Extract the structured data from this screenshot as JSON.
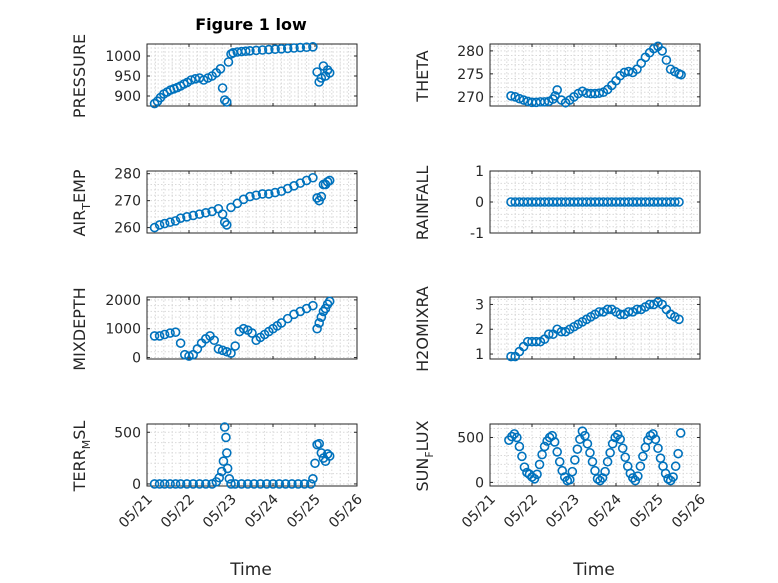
{
  "figure": {
    "title": "Figure 1 low",
    "xlabel": "Time"
  },
  "chart_data": [
    {
      "id": "pressure",
      "type": "scatter",
      "ylabel": "PRESSURE",
      "ylim": [
        875,
        1030
      ],
      "yticks": [
        900,
        950,
        1000
      ],
      "ytick_labels": [
        "900",
        "950",
        "1000"
      ],
      "xlim": [
        0,
        5
      ],
      "xticks": [
        0,
        1,
        2,
        3,
        4,
        5
      ],
      "xtick_labels": [
        "05/21",
        "05/22",
        "05/23",
        "05/24",
        "05/25",
        "05/26"
      ],
      "xtick_labels_visible": false,
      "grid": true,
      "x": [
        0.18,
        0.25,
        0.32,
        0.4,
        0.48,
        0.56,
        0.64,
        0.72,
        0.8,
        0.88,
        0.96,
        1.05,
        1.15,
        1.25,
        1.35,
        1.45,
        1.55,
        1.65,
        1.75,
        1.8,
        1.85,
        1.9,
        1.94,
        2.0,
        2.05,
        2.15,
        2.25,
        2.35,
        2.45,
        2.6,
        2.75,
        2.9,
        3.05,
        3.2,
        3.35,
        3.5,
        3.65,
        3.8,
        3.95,
        4.05,
        4.1,
        4.15,
        4.2,
        4.25,
        4.3,
        4.35
      ],
      "y": [
        881,
        887,
        896,
        905,
        910,
        915,
        918,
        921,
        925,
        930,
        934,
        940,
        943,
        945,
        940,
        945,
        950,
        958,
        968,
        920,
        890,
        885,
        985,
        1005,
        1008,
        1010,
        1011,
        1012,
        1013,
        1014,
        1015,
        1016,
        1017,
        1018,
        1019,
        1020,
        1021,
        1022,
        1023,
        960,
        935,
        945,
        975,
        950,
        965,
        958
      ]
    },
    {
      "id": "theta",
      "type": "scatter",
      "ylabel": "THETA",
      "ylim": [
        268,
        281.5
      ],
      "yticks": [
        270,
        275,
        280
      ],
      "ytick_labels": [
        "270",
        "275",
        "280"
      ],
      "xlim": [
        0,
        5
      ],
      "xticks": [
        0,
        1,
        2,
        3,
        4,
        5
      ],
      "xtick_labels": [
        "05/21",
        "05/22",
        "05/23",
        "05/24",
        "05/25",
        "05/26"
      ],
      "xtick_labels_visible": false,
      "grid": true,
      "x": [
        0.5,
        0.6,
        0.7,
        0.8,
        0.9,
        1.0,
        1.1,
        1.2,
        1.3,
        1.4,
        1.5,
        1.55,
        1.6,
        1.7,
        1.8,
        1.9,
        2.0,
        2.1,
        2.2,
        2.3,
        2.4,
        2.5,
        2.6,
        2.7,
        2.8,
        2.9,
        3.0,
        3.1,
        3.2,
        3.3,
        3.4,
        3.5,
        3.6,
        3.7,
        3.8,
        3.9,
        4.0,
        4.1,
        4.2,
        4.3,
        4.4,
        4.5,
        4.55
      ],
      "y": [
        270.2,
        270.0,
        269.6,
        269.3,
        269.0,
        268.8,
        268.8,
        268.9,
        268.9,
        269.0,
        269.5,
        270.2,
        271.5,
        269.3,
        268.7,
        269.3,
        270.0,
        270.7,
        271.2,
        270.8,
        270.7,
        270.7,
        270.8,
        271.0,
        271.6,
        272.5,
        273.5,
        274.6,
        275.3,
        275.5,
        275.3,
        276.0,
        277.3,
        278.6,
        279.6,
        280.5,
        281.0,
        280.0,
        278.0,
        276.0,
        275.5,
        275.0,
        274.8
      ]
    },
    {
      "id": "air_temp",
      "type": "scatter",
      "ylabel": "AIR_TEMP",
      "ylim": [
        258,
        281
      ],
      "yticks": [
        260,
        270,
        280
      ],
      "ytick_labels": [
        "260",
        "270",
        "280"
      ],
      "xlim": [
        0,
        5
      ],
      "xticks": [
        0,
        1,
        2,
        3,
        4,
        5
      ],
      "xtick_labels": [
        "05/21",
        "05/22",
        "05/23",
        "05/24",
        "05/25",
        "05/26"
      ],
      "xtick_labels_visible": false,
      "grid": true,
      "x": [
        0.18,
        0.3,
        0.42,
        0.55,
        0.68,
        0.8,
        0.95,
        1.1,
        1.25,
        1.4,
        1.55,
        1.7,
        1.8,
        1.85,
        1.9,
        2.0,
        2.15,
        2.3,
        2.45,
        2.6,
        2.75,
        2.9,
        3.05,
        3.2,
        3.35,
        3.5,
        3.65,
        3.8,
        3.95,
        4.05,
        4.1,
        4.15,
        4.2,
        4.25,
        4.3,
        4.35
      ],
      "y": [
        260,
        261,
        261.5,
        262,
        262.5,
        263.5,
        264,
        264.5,
        265,
        265.5,
        266,
        267,
        265,
        262,
        261,
        267.5,
        269,
        270.5,
        271.5,
        272,
        272.5,
        272.5,
        273,
        273.5,
        274.5,
        275.5,
        276.5,
        277.5,
        278.5,
        271,
        270,
        271.5,
        276,
        276,
        277,
        277.5
      ]
    },
    {
      "id": "rainfall",
      "type": "scatter",
      "ylabel": "RAINFALL",
      "ylim": [
        -1,
        1
      ],
      "yticks": [
        -1,
        0,
        1
      ],
      "ytick_labels": [
        "-1",
        "0",
        "1"
      ],
      "xlim": [
        0,
        5
      ],
      "xticks": [
        0,
        1,
        2,
        3,
        4,
        5
      ],
      "xtick_labels": [
        "05/21",
        "05/22",
        "05/23",
        "05/24",
        "05/25",
        "05/26"
      ],
      "xtick_labels_visible": false,
      "grid": true,
      "x": [
        0.5,
        0.6,
        0.7,
        0.8,
        0.9,
        1.0,
        1.1,
        1.2,
        1.3,
        1.4,
        1.5,
        1.6,
        1.7,
        1.8,
        1.9,
        2.0,
        2.1,
        2.2,
        2.3,
        2.4,
        2.5,
        2.6,
        2.7,
        2.8,
        2.9,
        3.0,
        3.1,
        3.2,
        3.3,
        3.4,
        3.5,
        3.6,
        3.7,
        3.8,
        3.9,
        4.0,
        4.1,
        4.2,
        4.3,
        4.4,
        4.5
      ],
      "y": [
        0,
        0,
        0,
        0,
        0,
        0,
        0,
        0,
        0,
        0,
        0,
        0,
        0,
        0,
        0,
        0,
        0,
        0,
        0,
        0,
        0,
        0,
        0,
        0,
        0,
        0,
        0,
        0,
        0,
        0,
        0,
        0,
        0,
        0,
        0,
        0,
        0,
        0,
        0,
        0,
        0
      ]
    },
    {
      "id": "mixdepth",
      "type": "scatter",
      "ylabel": "MIXDEPTH",
      "ylim": [
        -50,
        2100
      ],
      "yticks": [
        0,
        1000,
        2000
      ],
      "ytick_labels": [
        "0",
        "1000",
        "2000"
      ],
      "xlim": [
        0,
        5
      ],
      "xticks": [
        0,
        1,
        2,
        3,
        4,
        5
      ],
      "xtick_labels": [
        "05/21",
        "05/22",
        "05/23",
        "05/24",
        "05/25",
        "05/26"
      ],
      "xtick_labels_visible": false,
      "grid": true,
      "x": [
        0.18,
        0.3,
        0.42,
        0.55,
        0.68,
        0.8,
        0.9,
        1.0,
        1.1,
        1.2,
        1.3,
        1.4,
        1.5,
        1.6,
        1.7,
        1.8,
        1.9,
        2.0,
        2.1,
        2.2,
        2.3,
        2.4,
        2.5,
        2.6,
        2.7,
        2.8,
        2.9,
        3.0,
        3.1,
        3.2,
        3.35,
        3.5,
        3.65,
        3.8,
        3.95,
        4.05,
        4.1,
        4.15,
        4.2,
        4.25,
        4.3,
        4.35
      ],
      "y": [
        750,
        750,
        800,
        850,
        880,
        500,
        100,
        50,
        100,
        300,
        500,
        650,
        750,
        600,
        300,
        250,
        200,
        150,
        400,
        900,
        1000,
        950,
        850,
        600,
        700,
        800,
        900,
        1000,
        1100,
        1200,
        1350,
        1500,
        1600,
        1700,
        1800,
        1000,
        1200,
        1400,
        1600,
        1700,
        1850,
        1950
      ]
    },
    {
      "id": "h2omixra",
      "type": "scatter",
      "ylabel": "H2OMIXRA",
      "ylim": [
        0.8,
        3.3
      ],
      "yticks": [
        1,
        2,
        3
      ],
      "ytick_labels": [
        "1",
        "2",
        "3"
      ],
      "xlim": [
        0,
        5
      ],
      "xticks": [
        0,
        1,
        2,
        3,
        4,
        5
      ],
      "xtick_labels": [
        "05/21",
        "05/22",
        "05/23",
        "05/24",
        "05/25",
        "05/26"
      ],
      "xtick_labels_visible": false,
      "grid": true,
      "x": [
        0.5,
        0.6,
        0.7,
        0.8,
        0.9,
        1.0,
        1.1,
        1.2,
        1.3,
        1.4,
        1.5,
        1.6,
        1.7,
        1.8,
        1.9,
        2.0,
        2.1,
        2.2,
        2.3,
        2.4,
        2.5,
        2.6,
        2.7,
        2.8,
        2.9,
        3.0,
        3.1,
        3.2,
        3.3,
        3.4,
        3.5,
        3.6,
        3.7,
        3.8,
        3.9,
        4.0,
        4.1,
        4.2,
        4.3,
        4.4,
        4.5
      ],
      "y": [
        0.9,
        0.9,
        1.1,
        1.3,
        1.5,
        1.5,
        1.5,
        1.5,
        1.6,
        1.8,
        1.8,
        2.0,
        1.9,
        1.9,
        2.0,
        2.1,
        2.2,
        2.3,
        2.4,
        2.5,
        2.6,
        2.7,
        2.7,
        2.8,
        2.8,
        2.7,
        2.6,
        2.6,
        2.7,
        2.7,
        2.8,
        2.8,
        2.9,
        3.0,
        3.0,
        3.1,
        3.0,
        2.8,
        2.6,
        2.5,
        2.4
      ]
    },
    {
      "id": "terr_msl",
      "type": "scatter",
      "ylabel": "TERR_MSL",
      "ylim": [
        -20,
        580
      ],
      "yticks": [
        0,
        500
      ],
      "ytick_labels": [
        "0",
        "500"
      ],
      "xlim": [
        0,
        5
      ],
      "xticks": [
        0,
        1,
        2,
        3,
        4,
        5
      ],
      "xtick_labels": [
        "05/21",
        "05/22",
        "05/23",
        "05/24",
        "05/25",
        "05/26"
      ],
      "xtick_labels_visible": true,
      "grid": true,
      "x": [
        0.18,
        0.3,
        0.42,
        0.55,
        0.68,
        0.8,
        0.95,
        1.1,
        1.25,
        1.4,
        1.55,
        1.65,
        1.72,
        1.78,
        1.82,
        1.85,
        1.88,
        1.9,
        1.92,
        1.96,
        2.0,
        2.1,
        2.25,
        2.4,
        2.55,
        2.7,
        2.85,
        3.0,
        3.15,
        3.3,
        3.45,
        3.6,
        3.75,
        3.9,
        3.95,
        4.0,
        4.05,
        4.1,
        4.15,
        4.2,
        4.25,
        4.3,
        4.35
      ],
      "y": [
        0,
        0,
        0,
        0,
        0,
        0,
        0,
        0,
        0,
        0,
        0,
        20,
        60,
        120,
        220,
        550,
        450,
        300,
        150,
        50,
        0,
        0,
        0,
        0,
        0,
        0,
        0,
        0,
        0,
        0,
        0,
        0,
        0,
        0,
        50,
        200,
        380,
        390,
        300,
        250,
        220,
        290,
        270
      ]
    },
    {
      "id": "sun_flux",
      "type": "scatter",
      "ylabel": "SUN_FLUX",
      "ylim": [
        -40,
        650
      ],
      "yticks": [
        0,
        500
      ],
      "ytick_labels": [
        "0",
        "500"
      ],
      "xlim": [
        0,
        5
      ],
      "xticks": [
        0,
        1,
        2,
        3,
        4,
        5
      ],
      "xtick_labels": [
        "05/21",
        "05/22",
        "05/23",
        "05/24",
        "05/25",
        "05/26"
      ],
      "xtick_labels_visible": true,
      "grid": true,
      "x": [
        0.45,
        0.52,
        0.58,
        0.64,
        0.7,
        0.76,
        0.82,
        0.88,
        0.94,
        1.0,
        1.06,
        1.12,
        1.18,
        1.24,
        1.3,
        1.36,
        1.42,
        1.48,
        1.54,
        1.6,
        1.66,
        1.72,
        1.78,
        1.84,
        1.9,
        1.96,
        2.02,
        2.08,
        2.14,
        2.2,
        2.26,
        2.32,
        2.38,
        2.44,
        2.5,
        2.56,
        2.62,
        2.68,
        2.74,
        2.8,
        2.86,
        2.92,
        2.98,
        3.04,
        3.1,
        3.16,
        3.22,
        3.28,
        3.34,
        3.4,
        3.46,
        3.52,
        3.58,
        3.64,
        3.7,
        3.76,
        3.82,
        3.88,
        3.94,
        4.0,
        4.06,
        4.12,
        4.18,
        4.24,
        4.3,
        4.36,
        4.42,
        4.48,
        4.54
      ],
      "y": [
        470,
        510,
        540,
        500,
        400,
        290,
        170,
        110,
        90,
        60,
        40,
        90,
        200,
        310,
        400,
        460,
        500,
        520,
        450,
        340,
        230,
        130,
        60,
        20,
        30,
        120,
        250,
        370,
        480,
        570,
        520,
        430,
        330,
        230,
        130,
        40,
        20,
        50,
        120,
        230,
        330,
        430,
        500,
        530,
        480,
        380,
        280,
        180,
        100,
        50,
        20,
        70,
        180,
        290,
        390,
        470,
        520,
        540,
        480,
        380,
        270,
        180,
        100,
        40,
        20,
        60,
        180,
        320,
        550
      ]
    }
  ]
}
